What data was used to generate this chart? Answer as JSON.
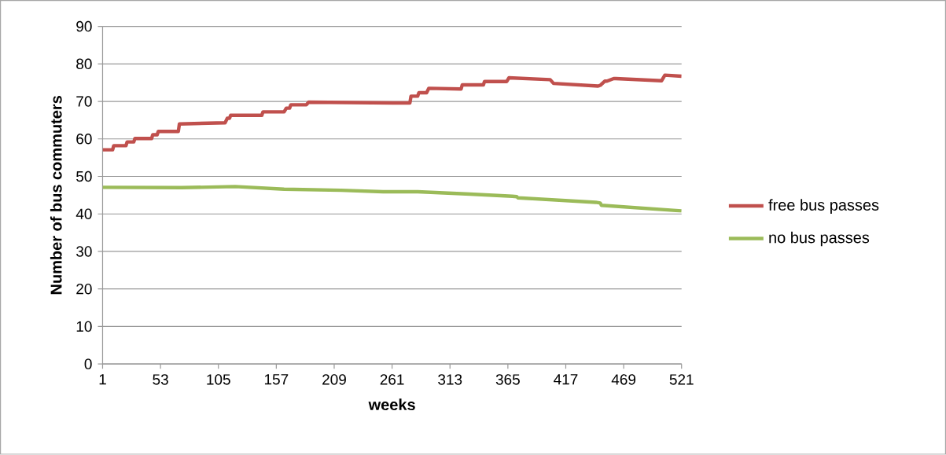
{
  "chart_data": {
    "type": "line",
    "xlabel": "weeks",
    "ylabel": "Number of bus commuters",
    "xlim": [
      1,
      521
    ],
    "xticks": [
      1,
      53,
      105,
      157,
      209,
      261,
      313,
      365,
      417,
      469,
      521
    ],
    "ylim": [
      0,
      90
    ],
    "yticks": [
      0,
      10,
      20,
      30,
      40,
      50,
      60,
      70,
      80,
      90
    ],
    "grid": "y",
    "legend": "right",
    "marker": "none",
    "line_style": "solid",
    "series": [
      {
        "name": "free bus passes",
        "color": "#c0504d",
        "x": [
          1,
          10,
          11,
          22,
          23,
          29,
          30,
          45,
          46,
          50,
          51,
          69,
          70,
          111,
          113,
          115,
          116,
          144,
          145,
          164,
          166,
          169,
          170,
          184,
          186,
          262,
          277,
          278,
          284,
          285,
          292,
          294,
          323,
          324,
          343,
          344,
          364,
          366,
          403,
          406,
          446,
          448,
          452,
          454,
          460,
          462,
          503,
          506,
          521
        ],
        "values": [
          57.1,
          57.1,
          58.2,
          58.2,
          59.2,
          59.2,
          60.1,
          60.1,
          61.1,
          61.1,
          62.0,
          62.0,
          64.0,
          64.3,
          65.5,
          65.5,
          66.3,
          66.3,
          67.2,
          67.2,
          68.2,
          68.2,
          69.1,
          69.1,
          69.8,
          69.6,
          69.6,
          71.4,
          71.4,
          72.3,
          72.3,
          73.5,
          73.3,
          74.4,
          74.4,
          75.3,
          75.3,
          76.3,
          75.8,
          74.8,
          74.1,
          74.3,
          75.4,
          75.4,
          76.1,
          76.1,
          75.5,
          77.0,
          76.7
        ]
      },
      {
        "name": "no bus passes",
        "color": "#9bbb59",
        "x": [
          1,
          72,
          120,
          164,
          215,
          253,
          284,
          331,
          369,
          373,
          374,
          444,
          448,
          449,
          521
        ],
        "values": [
          47.1,
          47.0,
          47.3,
          46.6,
          46.3,
          45.9,
          45.9,
          45.3,
          44.7,
          44.6,
          44.3,
          43.1,
          42.9,
          42.3,
          40.8
        ]
      }
    ]
  }
}
